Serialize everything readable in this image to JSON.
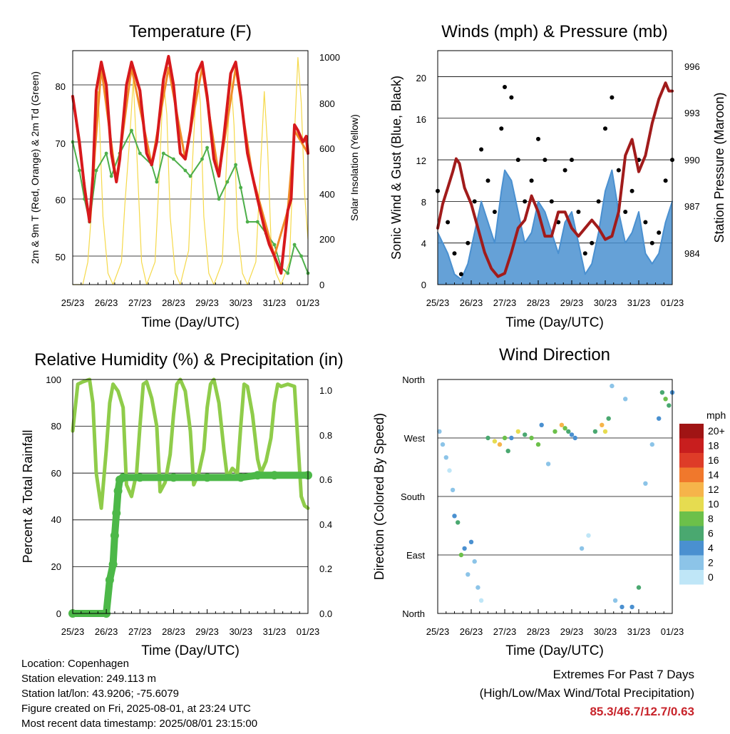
{
  "x_ticks": [
    "25/23",
    "26/23",
    "27/23",
    "28/23",
    "29/23",
    "30/23",
    "31/23",
    "01/23"
  ],
  "colors": {
    "red": "#d7191c",
    "orange": "#f08c28",
    "green_temp": "#4daf4a",
    "yellow": "#f5d94a",
    "wind_black": "#000000",
    "wind_blue": "#4a90d0",
    "pressure": "#a11b1b",
    "rh": "#8fcc4a",
    "precip": "#4cb848",
    "extremes": "#c8242b"
  },
  "panels": {
    "temperature": {
      "title": "Temperature (F)",
      "ylabel_left": "2m & 9m T (Red, Orange) & 2m Td (Green)",
      "ylabel_right": "Solar Insolation (Yellow)",
      "xlabel": "Time (Day/UTC)",
      "yticks_left": [
        "50",
        "60",
        "70",
        "80"
      ],
      "yticks_right": [
        "0",
        "200",
        "400",
        "600",
        "800",
        "1000"
      ]
    },
    "winds": {
      "title": "Winds (mph) & Pressure (mb)",
      "ylabel_left": "Sonic Wind & Gust (Blue, Black)",
      "ylabel_right": "Station Pressure (Maroon)",
      "xlabel": "Time (Day/UTC)",
      "yticks_left": [
        "0",
        "4",
        "8",
        "12",
        "16",
        "20"
      ],
      "yticks_right": [
        "984",
        "987",
        "990",
        "993",
        "996"
      ]
    },
    "humidity": {
      "title": "Relative Humidity (%) & Precipitation (in)",
      "ylabel_left": "Percent & Total Rainfall",
      "xlabel": "Time (Day/UTC)",
      "yticks_left": [
        "0",
        "20",
        "40",
        "60",
        "80",
        "100"
      ],
      "yticks_right": [
        "0.0",
        "0.2",
        "0.4",
        "0.6",
        "0.8",
        "1.0"
      ]
    },
    "direction": {
      "title": "Wind Direction",
      "ylabel_left": "Direction (Colored By Speed)",
      "xlabel": "Time (Day/UTC)",
      "yticks_left": [
        "North",
        "East",
        "South",
        "West",
        "North"
      ],
      "legend_title": "mph",
      "legend_labels": [
        "0",
        "2",
        "4",
        "6",
        "8",
        "10",
        "12",
        "14",
        "16",
        "18",
        "20+"
      ],
      "legend_colors": [
        "#bfe6f7",
        "#8cc4e8",
        "#4a90d0",
        "#4aa870",
        "#6cc04a",
        "#e6dc50",
        "#f6b44a",
        "#f0782c",
        "#de3c28",
        "#c81e1e",
        "#a01414"
      ]
    }
  },
  "chart_data": [
    {
      "type": "line",
      "title": "Temperature (F)",
      "xlabel": "Time (Day/UTC)",
      "ylabel": "2m & 9m T (Red, Orange) & 2m Td (Green)",
      "ylim": [
        45,
        86
      ],
      "y2lim": [
        0,
        1030
      ],
      "series": [
        {
          "name": "2m T",
          "axis": "left",
          "color": "#d7191c",
          "x": [
            0,
            0.2,
            0.35,
            0.5,
            0.6,
            0.7,
            0.85,
            1.0,
            1.15,
            1.3,
            1.4,
            1.6,
            1.75,
            2.0,
            2.2,
            2.35,
            2.5,
            2.7,
            2.85,
            3.0,
            3.2,
            3.35,
            3.5,
            3.7,
            3.85,
            4.0,
            4.2,
            4.35,
            4.5,
            4.7,
            4.85,
            5.0,
            5.2,
            5.35,
            5.5,
            5.7,
            5.85,
            6.0,
            6.2,
            6.4,
            6.5,
            6.6,
            6.7,
            6.85,
            6.95,
            7.0
          ],
          "y": [
            78,
            70,
            62,
            56,
            64,
            79,
            84,
            80,
            68,
            63,
            67,
            80,
            84,
            79,
            68,
            66,
            70,
            81,
            85,
            80,
            68,
            67,
            72,
            82,
            84,
            78,
            67,
            64,
            71,
            82,
            84,
            78,
            68,
            64,
            60,
            55,
            52,
            50,
            47,
            58,
            60,
            73,
            72,
            70,
            71,
            68
          ]
        },
        {
          "name": "9m T",
          "axis": "left",
          "color": "#f08c28",
          "x": [
            0,
            0.5,
            0.85,
            1.3,
            1.75,
            2.35,
            2.85,
            3.35,
            3.85,
            4.35,
            4.85,
            5.35,
            6.0,
            6.4,
            6.6,
            7.0
          ],
          "y": [
            78,
            56,
            83,
            63,
            83,
            66,
            83,
            67,
            83,
            64,
            83,
            64,
            50,
            58,
            72,
            68
          ]
        },
        {
          "name": "2m Td",
          "axis": "left",
          "color": "#4daf4a",
          "x": [
            0,
            0.2,
            0.35,
            0.5,
            0.7,
            1.0,
            1.15,
            1.4,
            1.75,
            2.0,
            2.35,
            2.5,
            2.7,
            3.0,
            3.35,
            3.5,
            3.85,
            4.0,
            4.35,
            4.6,
            4.85,
            5.0,
            5.2,
            5.5,
            5.75,
            6.0,
            6.2,
            6.4,
            6.6,
            6.8,
            7.0
          ],
          "y": [
            70,
            65,
            60,
            56,
            65,
            68,
            64,
            68,
            72,
            68,
            66,
            63,
            68,
            67,
            65,
            64,
            67,
            69,
            60,
            63,
            66,
            62,
            56,
            56,
            54,
            52,
            48,
            47,
            52,
            50,
            47
          ]
        },
        {
          "name": "Solar Insolation",
          "axis": "right",
          "color": "#f5d94a",
          "x": [
            0,
            0.3,
            0.45,
            0.55,
            0.65,
            0.75,
            0.8,
            0.9,
            1.05,
            1.2,
            1.45,
            1.55,
            1.7,
            1.8,
            1.9,
            2.05,
            2.2,
            2.45,
            2.55,
            2.7,
            2.8,
            2.9,
            3.05,
            3.2,
            3.45,
            3.55,
            3.7,
            3.8,
            3.9,
            4.05,
            4.2,
            4.45,
            4.55,
            4.7,
            4.8,
            4.9,
            5.05,
            5.2,
            5.45,
            5.55,
            5.7,
            5.8,
            5.9,
            6.05,
            6.2,
            6.45,
            6.55,
            6.7,
            6.8,
            6.9,
            7.0
          ],
          "y": [
            0,
            0,
            100,
            300,
            500,
            850,
            700,
            300,
            50,
            0,
            100,
            350,
            650,
            900,
            600,
            100,
            0,
            100,
            400,
            900,
            750,
            300,
            50,
            0,
            150,
            500,
            940,
            800,
            300,
            50,
            0,
            100,
            450,
            930,
            700,
            250,
            50,
            0,
            100,
            400,
            850,
            600,
            200,
            50,
            0,
            100,
            500,
            1000,
            800,
            400,
            200
          ]
        }
      ]
    },
    {
      "type": "line",
      "title": "Winds (mph) & Pressure (mb)",
      "xlabel": "Time (Day/UTC)",
      "ylabel": "Sonic Wind & Gust (Blue, Black)",
      "ylim": [
        0,
        22.5
      ],
      "y2lim": [
        983,
        997.5
      ],
      "series": [
        {
          "name": "Gust",
          "axis": "left",
          "color": "#000000",
          "x": [
            0,
            0.3,
            0.5,
            0.7,
            0.9,
            1.1,
            1.3,
            1.5,
            1.7,
            1.9,
            2.0,
            2.2,
            2.4,
            2.6,
            2.8,
            3.0,
            3.2,
            3.4,
            3.6,
            3.8,
            4.0,
            4.2,
            4.4,
            4.6,
            4.8,
            5.0,
            5.2,
            5.4,
            5.6,
            5.8,
            6.0,
            6.2,
            6.4,
            6.6,
            6.8,
            7.0
          ],
          "y": [
            9,
            6,
            3,
            1,
            4,
            8,
            13,
            10,
            7,
            15,
            19,
            18,
            12,
            8,
            10,
            14,
            12,
            8,
            6,
            11,
            12,
            7,
            3,
            4,
            8,
            15,
            18,
            11,
            7,
            9,
            12,
            6,
            4,
            5,
            10,
            12
          ]
        },
        {
          "name": "Sonic Wind",
          "axis": "left",
          "color": "#4a90d0",
          "x": [
            0,
            0.3,
            0.5,
            0.7,
            0.9,
            1.1,
            1.3,
            1.5,
            1.7,
            1.9,
            2.0,
            2.2,
            2.4,
            2.6,
            2.8,
            3.0,
            3.2,
            3.4,
            3.6,
            3.8,
            4.0,
            4.2,
            4.4,
            4.6,
            4.8,
            5.0,
            5.2,
            5.4,
            5.6,
            5.8,
            6.0,
            6.2,
            6.4,
            6.6,
            6.8,
            7.0
          ],
          "y": [
            5,
            3,
            1,
            0.5,
            2,
            5,
            8,
            6,
            4,
            9,
            11,
            10,
            7,
            4,
            5,
            8,
            7,
            5,
            3,
            6,
            7,
            4,
            1,
            2,
            5,
            9,
            11,
            7,
            4,
            5,
            7,
            3,
            2,
            3,
            6,
            8
          ]
        },
        {
          "name": "Station Pressure",
          "axis": "right",
          "color": "#a11b1b",
          "x": [
            0,
            0.15,
            0.3,
            0.45,
            0.55,
            0.65,
            0.8,
            1.0,
            1.2,
            1.4,
            1.6,
            1.8,
            2.0,
            2.2,
            2.4,
            2.6,
            2.8,
            3.0,
            3.2,
            3.4,
            3.6,
            3.8,
            4.0,
            4.2,
            4.4,
            4.6,
            4.8,
            5.0,
            5.2,
            5.4,
            5.6,
            5.8,
            6.0,
            6.2,
            6.4,
            6.6,
            6.8,
            6.9,
            7.0
          ],
          "y": [
            986.5,
            988,
            989,
            990,
            990.8,
            990.5,
            989,
            988,
            986.5,
            985,
            984,
            983.5,
            983.7,
            985,
            986.5,
            987,
            988.5,
            987.5,
            986,
            986,
            987.5,
            987.5,
            986.5,
            986,
            986.5,
            987,
            986.5,
            985.8,
            986,
            987.5,
            991,
            992,
            990,
            991,
            993,
            994.5,
            995.5,
            995,
            995
          ]
        }
      ]
    },
    {
      "type": "line",
      "title": "Relative Humidity (%) & Precipitation (in)",
      "xlabel": "Time (Day/UTC)",
      "ylabel": "Percent & Total Rainfall",
      "ylim": [
        0,
        100
      ],
      "y2lim": [
        0,
        1.05
      ],
      "series": [
        {
          "name": "Relative Humidity",
          "axis": "left",
          "color": "#8fcc4a",
          "x": [
            0,
            0.15,
            0.3,
            0.5,
            0.6,
            0.7,
            0.85,
            1.0,
            1.1,
            1.2,
            1.35,
            1.5,
            1.6,
            1.75,
            1.9,
            2.0,
            2.1,
            2.2,
            2.35,
            2.5,
            2.6,
            2.75,
            2.9,
            3.0,
            3.1,
            3.2,
            3.35,
            3.5,
            3.6,
            3.75,
            3.9,
            4.0,
            4.1,
            4.2,
            4.35,
            4.5,
            4.6,
            4.75,
            4.9,
            5.0,
            5.1,
            5.2,
            5.35,
            5.5,
            5.6,
            5.75,
            5.9,
            6.0,
            6.1,
            6.2,
            6.4,
            6.6,
            6.8,
            6.9,
            7.0
          ],
          "y": [
            78,
            98,
            99,
            100,
            90,
            60,
            45,
            70,
            90,
            98,
            95,
            88,
            55,
            50,
            60,
            80,
            98,
            99,
            92,
            80,
            52,
            56,
            68,
            85,
            98,
            100,
            95,
            78,
            55,
            60,
            70,
            88,
            98,
            100,
            90,
            70,
            58,
            62,
            60,
            80,
            98,
            97,
            85,
            66,
            60,
            65,
            75,
            90,
            98,
            97,
            98,
            97,
            50,
            46,
            45
          ]
        },
        {
          "name": "Precipitation",
          "axis": "right",
          "color": "#4cb848",
          "x": [
            0,
            1.0,
            1.1,
            1.2,
            1.25,
            1.3,
            1.35,
            1.4,
            1.5,
            2.0,
            3.0,
            4.0,
            5.0,
            5.5,
            6.0,
            7.0
          ],
          "y": [
            0,
            0,
            0.15,
            0.22,
            0.35,
            0.45,
            0.55,
            0.6,
            0.61,
            0.61,
            0.61,
            0.61,
            0.61,
            0.62,
            0.62,
            0.62
          ]
        }
      ]
    },
    {
      "type": "scatter",
      "title": "Wind Direction",
      "xlabel": "Time (Day/UTC)",
      "ylabel": "Direction (Colored By Speed)",
      "ylim": [
        0,
        360
      ],
      "legend": "right",
      "series": [
        {
          "name": "Wind Direction",
          "x": [
            0.05,
            0.15,
            0.25,
            0.35,
            0.45,
            0.5,
            0.6,
            0.7,
            0.8,
            0.9,
            1.0,
            1.1,
            1.2,
            1.3,
            1.5,
            1.7,
            1.85,
            2.0,
            2.1,
            2.2,
            2.4,
            2.6,
            2.8,
            3.0,
            3.1,
            3.3,
            3.5,
            3.7,
            3.8,
            3.9,
            4.0,
            4.1,
            4.3,
            4.5,
            4.7,
            4.9,
            5.0,
            5.1,
            5.2,
            5.3,
            5.5,
            5.6,
            5.8,
            6.0,
            6.2,
            6.4,
            6.6,
            6.7,
            6.8,
            6.9,
            7.0
          ],
          "y": [
            280,
            260,
            240,
            220,
            190,
            150,
            140,
            90,
            100,
            60,
            110,
            80,
            40,
            20,
            270,
            265,
            260,
            270,
            250,
            270,
            280,
            275,
            270,
            260,
            290,
            230,
            280,
            290,
            285,
            280,
            275,
            270,
            100,
            120,
            280,
            290,
            280,
            300,
            350,
            20,
            10,
            330,
            10,
            40,
            200,
            260,
            300,
            340,
            330,
            320,
            340
          ],
          "speed": [
            2,
            3,
            2,
            1,
            2,
            4,
            6,
            8,
            5,
            3,
            4,
            3,
            2,
            1,
            6,
            10,
            12,
            8,
            6,
            4,
            10,
            7,
            8,
            9,
            4,
            3,
            8,
            12,
            9,
            7,
            5,
            4,
            2,
            1,
            6,
            12,
            10,
            6,
            3,
            2,
            4,
            3,
            5,
            6,
            2,
            3,
            4,
            7,
            8,
            6,
            5
          ]
        }
      ]
    }
  ],
  "info": {
    "location": "Location: Copenhagen",
    "elevation": "Station elevation: 249.113 m",
    "latlon": "Station lat/lon: 43.9206; -75.6079",
    "created": "Figure created on Fri, 2025-08-01, at 23:24 UTC",
    "recent": "Most recent data timestamp: 2025/08/01 23:15:00"
  },
  "extremes": {
    "title": "Extremes For Past 7 Days",
    "subtitle": "(High/Low/Max Wind/Total Precipitation)",
    "values": "85.3/46.7/12.7/0.63"
  }
}
